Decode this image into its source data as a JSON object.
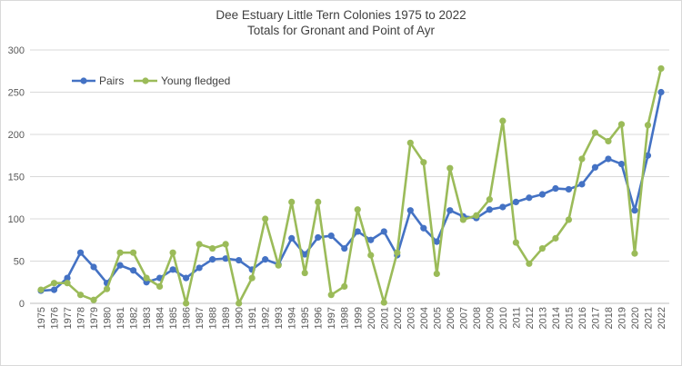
{
  "chart_data": {
    "type": "line",
    "title": "Dee Estuary Little Tern Colonies 1975 to 2022",
    "subtitle": "Totals for Gronant and Point of Ayr",
    "xlabel": "",
    "ylabel": "",
    "ylim": [
      0,
      300
    ],
    "yticks": [
      0,
      50,
      100,
      150,
      200,
      250,
      300
    ],
    "grid": true,
    "legend_position": "top-left",
    "x": [
      "1975",
      "1976",
      "1977",
      "1978",
      "1979",
      "1980",
      "1981",
      "1982",
      "1983",
      "1984",
      "1985",
      "1986",
      "1987",
      "1988",
      "1989",
      "1990",
      "1991",
      "1992",
      "1993",
      "1994",
      "1995",
      "1996",
      "1997",
      "1998",
      "1999",
      "2000",
      "2001",
      "2002",
      "2003",
      "2004",
      "2005",
      "2006",
      "2007",
      "2008",
      "2009",
      "2010",
      "2011",
      "2012",
      "2013",
      "2014",
      "2015",
      "2016",
      "2017",
      "2018",
      "2019",
      "2020",
      "2021",
      "2022"
    ],
    "series": [
      {
        "name": "Pairs",
        "color": "#4472c4",
        "values": [
          15,
          16,
          30,
          60,
          43,
          24,
          45,
          39,
          25,
          30,
          40,
          30,
          42,
          52,
          53,
          51,
          40,
          52,
          46,
          77,
          58,
          78,
          80,
          65,
          85,
          75,
          85,
          57,
          110,
          89,
          73,
          110,
          103,
          101,
          111,
          114,
          120,
          125,
          129,
          136,
          135,
          141,
          161,
          171,
          165,
          110,
          175,
          250
        ]
      },
      {
        "name": "Young fledged",
        "color": "#9bbb59",
        "values": [
          16,
          24,
          24,
          10,
          4,
          17,
          60,
          60,
          30,
          20,
          60,
          0,
          70,
          65,
          70,
          0,
          30,
          100,
          45,
          120,
          36,
          120,
          10,
          20,
          111,
          57,
          1,
          60,
          190,
          167,
          35,
          160,
          99,
          104,
          123,
          216,
          72,
          47,
          65,
          77,
          99,
          171,
          202,
          192,
          212,
          59,
          211,
          278
        ]
      }
    ]
  }
}
